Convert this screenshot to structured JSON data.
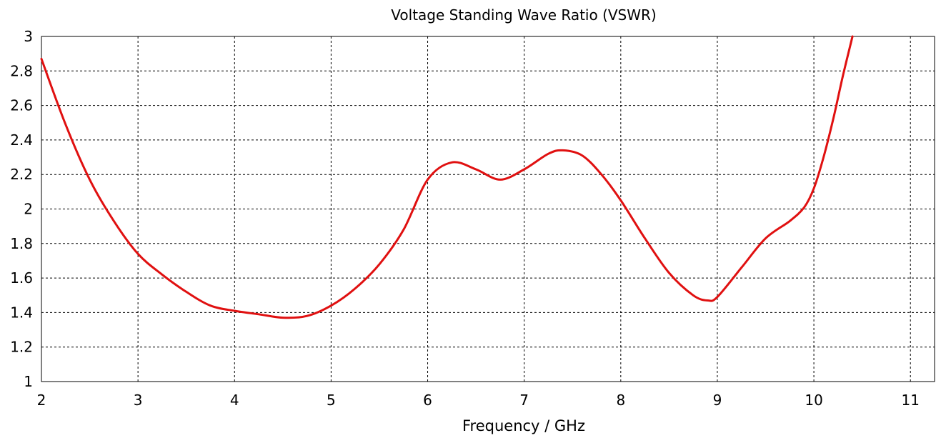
{
  "chart_data": {
    "type": "line",
    "title": "Voltage Standing Wave Ratio (VSWR)",
    "xlabel": "Frequency / GHz",
    "ylabel": "",
    "xlim": [
      2,
      11.25
    ],
    "ylim": [
      1,
      3
    ],
    "xticks": [
      "2",
      "3",
      "4",
      "5",
      "6",
      "7",
      "8",
      "9",
      "10",
      "11"
    ],
    "yticks": [
      "1",
      "1.2",
      "1.4",
      "1.6",
      "1.8",
      "2",
      "2.2",
      "2.4",
      "2.6",
      "2.8",
      "3"
    ],
    "grid": true,
    "line_color": "#e01010",
    "series": [
      {
        "x": [
          2.0,
          2.25,
          2.5,
          2.75,
          3.0,
          3.25,
          3.5,
          3.75,
          4.0,
          4.25,
          4.5,
          4.75,
          5.0,
          5.25,
          5.5,
          5.75,
          6.0,
          6.25,
          6.5,
          6.75,
          7.0,
          7.25,
          7.4,
          7.6,
          7.8,
          8.0,
          8.25,
          8.5,
          8.75,
          8.9,
          9.0,
          9.25,
          9.5,
          9.75,
          9.9,
          10.0,
          10.1,
          10.2,
          10.3,
          10.4
        ],
        "y": [
          2.87,
          2.49,
          2.17,
          1.93,
          1.74,
          1.62,
          1.52,
          1.44,
          1.41,
          1.39,
          1.37,
          1.38,
          1.44,
          1.54,
          1.68,
          1.88,
          2.17,
          2.27,
          2.23,
          2.17,
          2.23,
          2.32,
          2.34,
          2.31,
          2.2,
          2.05,
          1.83,
          1.63,
          1.5,
          1.47,
          1.49,
          1.66,
          1.83,
          1.93,
          2.01,
          2.12,
          2.3,
          2.52,
          2.77,
          3.0
        ]
      }
    ]
  }
}
